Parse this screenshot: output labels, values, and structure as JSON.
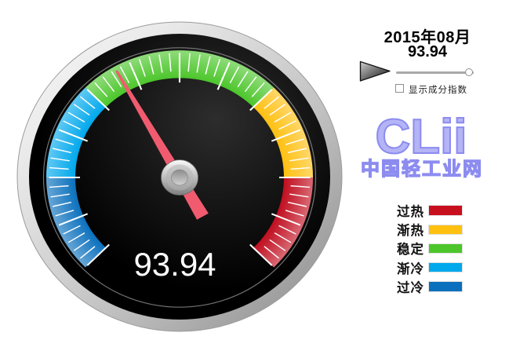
{
  "header": {
    "period": "2015年08月",
    "value": "93.94",
    "checkbox_label": "显示成分指数"
  },
  "logo": {
    "brand": "CLii",
    "name": "中国轻工业网",
    "color": "#8c8cf0"
  },
  "legend": {
    "items": [
      {
        "label": "过热",
        "color": "#c80f1e"
      },
      {
        "label": "渐热",
        "color": "#ffc010"
      },
      {
        "label": "稳定",
        "color": "#4cc62b"
      },
      {
        "label": "渐冷",
        "color": "#00a8ec"
      },
      {
        "label": "过冷",
        "color": "#0a70bd"
      }
    ]
  },
  "chart_data": {
    "type": "gauge",
    "title": "2015年08月",
    "value": 93.94,
    "value_label": "93.94",
    "start_angle": -135,
    "end_angle": 135,
    "needle_angle": -29.4,
    "needle_color": "#f15b6f",
    "tick_minor_step_deg": 4.5,
    "tick_major_every": 5,
    "segments": [
      {
        "label": "过冷",
        "color": "#0a70bd",
        "start": -135,
        "end": -90
      },
      {
        "label": "渐冷",
        "color": "#00a8ec",
        "start": -90,
        "end": -45
      },
      {
        "label": "稳定",
        "color": "#4cc62b",
        "start": -45,
        "end": 45
      },
      {
        "label": "渐热",
        "color": "#ffc010",
        "start": 45,
        "end": 90
      },
      {
        "label": "过热",
        "color": "#c00d1e",
        "start": 90,
        "end": 135
      }
    ]
  }
}
